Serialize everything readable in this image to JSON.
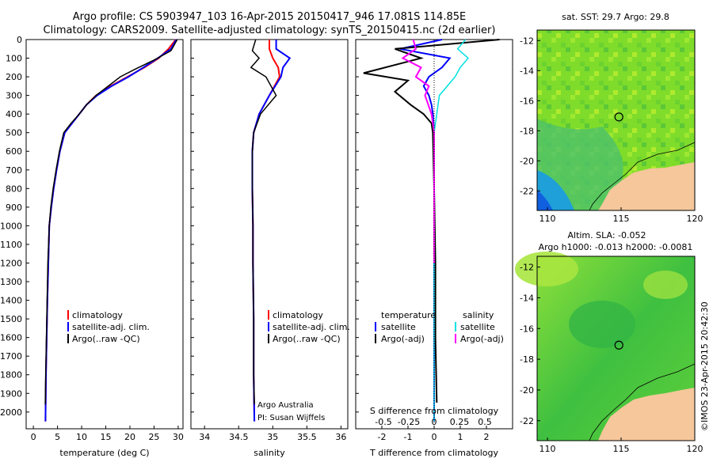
{
  "header": {
    "line1": "Argo profile: CS 5903947_103 16-Apr-2015 20150417_946 17.081S 114.85E",
    "line2": "Climatology: CARS2009. Satellite-adjusted climatology: synTS_20150415.nc (2d earlier)"
  },
  "colors": {
    "clim": "#ff0000",
    "sat": "#0000ff",
    "argo": "#000000",
    "sat_s": "#00e0e0",
    "argo_s": "#ff00ff",
    "land": "#f5c79b"
  },
  "depth_axis": {
    "ticks": [
      0,
      100,
      200,
      300,
      400,
      500,
      600,
      700,
      800,
      900,
      1000,
      1100,
      1200,
      1300,
      1400,
      1500,
      1600,
      1700,
      1800,
      1900,
      2000
    ],
    "range": [
      0,
      2090
    ]
  },
  "chart_data": [
    {
      "type": "line",
      "xlabel": "temperature (deg C)",
      "ylabel": "",
      "xlim": [
        -1.5,
        31
      ],
      "xticks": [
        0,
        5,
        10,
        15,
        20,
        25,
        30
      ],
      "ylim": [
        0,
        2090
      ],
      "y_inverted": true,
      "legend": [
        "climatology",
        "satellite-adj. clim.",
        "Argo(..raw -QC)"
      ],
      "series": [
        {
          "name": "climatology",
          "x": [
            29.5,
            28,
            26,
            23,
            19.5,
            16,
            13,
            11,
            9.5,
            8,
            6.5,
            5.5,
            4.8,
            4.2,
            3.7,
            3.3,
            3.1,
            2.9,
            2.75,
            2.6,
            2.5
          ],
          "y": [
            0,
            50,
            100,
            150,
            200,
            250,
            300,
            350,
            400,
            450,
            500,
            600,
            700,
            800,
            900,
            1000,
            1200,
            1400,
            1600,
            1800,
            2050
          ]
        },
        {
          "name": "satellite-adj. clim.",
          "x": [
            29.6,
            28.5,
            25.8,
            22.8,
            19.7,
            16.2,
            13.2,
            11,
            9.5,
            8,
            6.5,
            5.5,
            4.8,
            4.2,
            3.7,
            3.3,
            3.1,
            2.9,
            2.75,
            2.6,
            2.5
          ],
          "y": [
            0,
            50,
            100,
            150,
            200,
            250,
            300,
            350,
            400,
            450,
            500,
            600,
            700,
            800,
            900,
            1000,
            1200,
            1400,
            1600,
            1800,
            2050
          ]
        },
        {
          "name": "Argo(..raw -QC)",
          "x": [
            29.8,
            28.5,
            25,
            21,
            18,
            15.5,
            13,
            11,
            9.5,
            7.8,
            6.3,
            5.4,
            4.7,
            4.1,
            3.6,
            3.3,
            3,
            2.85,
            2.7,
            2.55,
            2.45
          ],
          "y": [
            0,
            60,
            110,
            160,
            200,
            250,
            300,
            350,
            400,
            450,
            500,
            600,
            700,
            800,
            900,
            1000,
            1200,
            1400,
            1600,
            1800,
            1960
          ]
        }
      ]
    },
    {
      "type": "line",
      "xlabel": "salinity",
      "ylabel": "",
      "xlim": [
        33.8,
        36.1
      ],
      "xticks": [
        34,
        34.5,
        35,
        35.5,
        36
      ],
      "ylim": [
        0,
        2090
      ],
      "y_inverted": true,
      "legend": [
        "climatology",
        "satellite-adj. clim.",
        "Argo(..raw -QC)"
      ],
      "annotations": [
        "Argo Australia",
        "PI: Susan Wijffels"
      ],
      "series": [
        {
          "name": "climatology",
          "x": [
            34.95,
            34.95,
            35.0,
            35.08,
            35.1,
            34.95,
            34.8,
            34.72,
            34.7,
            34.7,
            34.71,
            34.71,
            34.72,
            34.72,
            34.73
          ],
          "y": [
            0,
            50,
            100,
            150,
            200,
            300,
            400,
            500,
            600,
            800,
            1000,
            1200,
            1500,
            1800,
            2050
          ]
        },
        {
          "name": "satellite-adj. clim.",
          "x": [
            35.05,
            35.05,
            35.25,
            35.15,
            35.12,
            34.95,
            34.8,
            34.72,
            34.7,
            34.7,
            34.71,
            34.71,
            34.72,
            34.72,
            34.73
          ],
          "y": [
            0,
            50,
            100,
            150,
            200,
            300,
            400,
            500,
            600,
            800,
            1000,
            1200,
            1500,
            1800,
            2050
          ]
        },
        {
          "name": "Argo(..raw -QC)",
          "x": [
            34.75,
            34.7,
            34.8,
            34.68,
            34.9,
            35.05,
            34.82,
            34.72,
            34.7,
            34.7,
            34.71,
            34.71,
            34.72,
            34.72,
            34.73
          ],
          "y": [
            0,
            60,
            100,
            150,
            200,
            300,
            400,
            500,
            600,
            800,
            1000,
            1200,
            1500,
            1800,
            1960
          ]
        }
      ]
    },
    {
      "type": "line",
      "xlabel": "T difference from climatology",
      "xlabel_top": "S difference from climatology",
      "xlim": [
        -3,
        3
      ],
      "xticks": [
        -2,
        -1,
        0,
        1,
        2
      ],
      "xticks_top": [
        "-0.5",
        "-0.25",
        "0",
        "0.25",
        "0.5"
      ],
      "ylim": [
        0,
        2090
      ],
      "y_inverted": true,
      "legend": [
        "temperature",
        "satellite",
        "Argo(-adj)",
        "salinity",
        "satellite",
        "Argo(-adj)"
      ],
      "series": [
        {
          "name": "T satellite",
          "x": [
            0.3,
            -1.3,
            0.6,
            0.3,
            -0.2,
            -0.4,
            -0.2,
            -0.1,
            -0.05,
            0,
            0,
            0,
            0,
            0
          ],
          "y": [
            0,
            50,
            100,
            150,
            200,
            250,
            300,
            350,
            400,
            500,
            800,
            1200,
            1600,
            2050
          ]
        },
        {
          "name": "T Argo(-adj)",
          "x": [
            2.5,
            -1.5,
            -0.5,
            -2.7,
            -1,
            -1.5,
            -0.9,
            -0.4,
            -0.1,
            -0.05,
            0,
            0.05,
            0.05,
            0.1
          ],
          "y": [
            0,
            50,
            100,
            180,
            220,
            280,
            350,
            400,
            450,
            500,
            800,
            1200,
            1600,
            1950
          ]
        },
        {
          "name": "S satellite",
          "x": [
            1.2,
            0.9,
            1.3,
            1.0,
            0.8,
            0.5,
            0.2,
            0.1,
            0,
            0,
            0,
            0
          ],
          "y": [
            0,
            50,
            100,
            150,
            200,
            250,
            300,
            400,
            500,
            800,
            1200,
            2050
          ]
        },
        {
          "name": "S Argo(-adj)",
          "x": [
            -0.8,
            -0.7,
            -1.2,
            -0.5,
            -0.7,
            -0.2,
            -0.35,
            -0.1,
            0,
            0,
            0
          ],
          "y": [
            0,
            50,
            100,
            150,
            200,
            250,
            300,
            400,
            500,
            800,
            1200
          ]
        }
      ]
    }
  ],
  "map_sst": {
    "title": "sat. SST: 29.7  Argo: 29.8",
    "xticks": [
      110,
      115,
      120
    ],
    "yticks": [
      -12,
      -14,
      -16,
      -18,
      -20,
      -22
    ],
    "xlim": [
      109.3,
      120
    ],
    "ylim": [
      -23.3,
      -11.3
    ],
    "marker": {
      "lon": 114.85,
      "lat": -17.081
    }
  },
  "map_sla": {
    "title1": "Altim. SLA: -0.052",
    "title2": "Argo h1000: -0.013  h2000: -0.0081",
    "xticks": [
      110,
      115,
      120
    ],
    "yticks": [
      -12,
      -14,
      -16,
      -18,
      -20,
      -22
    ],
    "xlim": [
      109.3,
      120
    ],
    "ylim": [
      -23.3,
      -11.3
    ],
    "marker": {
      "lon": 114.85,
      "lat": -17.081
    }
  },
  "credit": "©IMOS 23-Apr-2015 20:42:30"
}
